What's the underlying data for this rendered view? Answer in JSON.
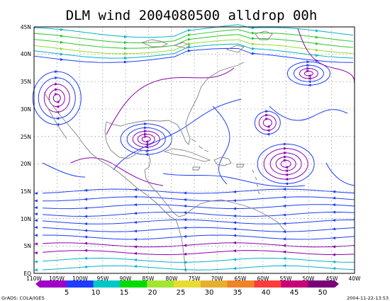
{
  "title": "DLM wind 2004080500 alldrop 00h",
  "lat_labels": [
    "EQ",
    "5N",
    "10N",
    "15N",
    "20N",
    "25N",
    "30N",
    "35N",
    "40N",
    "45N"
  ],
  "lon_labels": [
    "110W",
    "105W",
    "100W",
    "95W",
    "90W",
    "85W",
    "80W",
    "75W",
    "70W",
    "65W",
    "60W",
    "55W",
    "50W",
    "45W",
    "40W"
  ],
  "colorbar": {
    "values": [
      "5",
      "10",
      "15",
      "20",
      "25",
      "30",
      "35",
      "40",
      "45",
      "50"
    ],
    "colors": [
      "#a000c8",
      "#1e3cff",
      "#00c8c8",
      "#00dc00",
      "#a0e632",
      "#e6dc32",
      "#e6af2d",
      "#f08228",
      "#fa3c3c",
      "#c80078",
      "#7a007a"
    ]
  },
  "footer_left": "GrADS: COLA/IGES",
  "footer_right": "2004-11-22-13:53",
  "map": {
    "extent": {
      "lon_min": -110,
      "lon_max": -40,
      "lat_min": 0,
      "lat_max": 45
    },
    "circulations": [
      {
        "label": "high-gulf",
        "lon": -85.5,
        "lat": 24.5
      },
      {
        "label": "high-central-atlantic",
        "lon": -55,
        "lat": 20
      },
      {
        "label": "high-west-atlantic",
        "lon": -59,
        "lat": 27.5
      },
      {
        "label": "high-mid-atlantic",
        "lon": -50,
        "lat": 36.5
      },
      {
        "label": "high-southwest-us",
        "lon": -105,
        "lat": 32
      }
    ],
    "colors": {
      "coast": "#808080",
      "grid": "#9a9a9a",
      "purple": "#8b00b0",
      "blue": "#1e3cff",
      "cyan": "#00b4c8",
      "green": "#28c828",
      "lime": "#96dc32"
    }
  }
}
